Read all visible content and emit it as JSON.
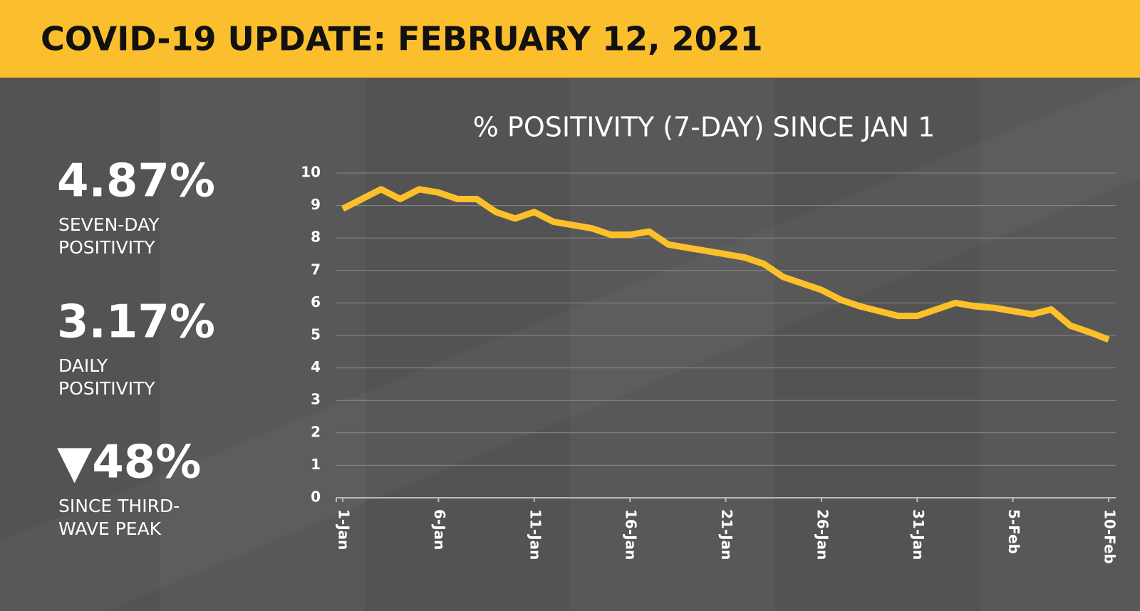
{
  "header": {
    "title": "COVID-19 UPDATE: FEBRUARY 12, 2021"
  },
  "stats": [
    {
      "value": "4.87%",
      "label": [
        "SEVEN-DAY",
        "POSITIVITY"
      ]
    },
    {
      "value": "3.17%",
      "label": [
        "DAILY",
        "POSITIVITY"
      ]
    },
    {
      "value": "▼48%",
      "label": [
        "SINCE THIRD-",
        "WAVE PEAK"
      ]
    }
  ],
  "chart_data": {
    "type": "line",
    "title": "% POSITIVITY (7-DAY) SINCE JAN 1",
    "categories": [
      "1-Jan",
      null,
      null,
      null,
      null,
      "6-Jan",
      null,
      null,
      null,
      null,
      "11-Jan",
      null,
      null,
      null,
      null,
      "16-Jan",
      null,
      null,
      null,
      null,
      "21-Jan",
      null,
      null,
      null,
      null,
      "26-Jan",
      null,
      null,
      null,
      null,
      "31-Jan",
      null,
      null,
      null,
      null,
      "5-Feb",
      null,
      null,
      null,
      null,
      "10-Feb"
    ],
    "values": [
      8.9,
      9.2,
      9.5,
      9.2,
      9.5,
      9.4,
      9.2,
      9.2,
      8.8,
      8.6,
      8.8,
      8.5,
      8.4,
      8.3,
      8.1,
      8.1,
      8.2,
      7.8,
      7.7,
      7.6,
      7.5,
      7.4,
      7.2,
      6.8,
      6.6,
      6.4,
      6.1,
      5.9,
      5.75,
      5.6,
      5.6,
      5.8,
      6.0,
      5.9,
      5.85,
      5.75,
      5.65,
      5.8,
      5.3,
      5.1,
      4.87
    ],
    "color": "#fcc12a",
    "ylim": [
      0,
      10
    ],
    "yticks": [
      0,
      1,
      2,
      3,
      4,
      5,
      6,
      7,
      8,
      9,
      10
    ],
    "grid": true
  }
}
